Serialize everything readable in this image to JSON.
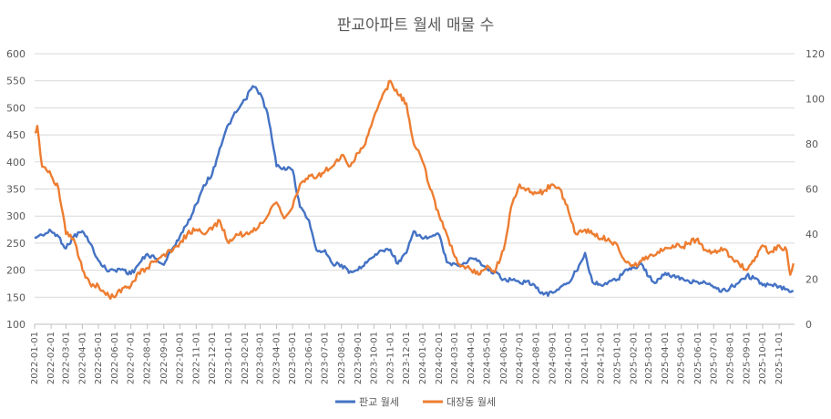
{
  "chart_data": {
    "type": "line",
    "title": "판교아파트 월세 매물 수",
    "x_tick_labels": [
      "2022-01-01",
      "2022-02-01",
      "2022-03-01",
      "2022-04-01",
      "2022-05-01",
      "2022-06-01",
      "2022-07-01",
      "2022-08-01",
      "2022-09-01",
      "2022-10-01",
      "2022-11-01",
      "2022-12-01",
      "2023-01-01",
      "2023-02-01",
      "2023-03-01",
      "2023-04-01",
      "2023-05-01",
      "2023-06-01",
      "2023-07-01",
      "2023-08-01",
      "2023-09-01",
      "2023-10-01",
      "2023-11-01",
      "2023-12-01",
      "2024-01-01",
      "2024-02-01",
      "2024-03-01",
      "2024-04-01",
      "2024-05-01",
      "2024-06-01",
      "2024-07-01",
      "2024-08-01",
      "2024-09-01",
      "2024-10-01",
      "2024-11-01",
      "2024-12-01",
      "2025-01-01",
      "2025-02-01",
      "2025-03-01",
      "2025-04-01",
      "2025-05-01",
      "2025-06-01",
      "2025-07-01",
      "2025-08-01",
      "2025-09-01",
      "2025-10-01",
      "2025-11-01"
    ],
    "y_left": {
      "min": 100,
      "max": 600,
      "ticks": [
        100,
        150,
        200,
        250,
        300,
        350,
        400,
        450,
        500,
        550,
        600
      ]
    },
    "y_right": {
      "min": 0,
      "max": 120,
      "ticks": [
        0,
        20,
        40,
        60,
        80,
        100,
        120
      ]
    },
    "grid": true,
    "legend_position": "bottom",
    "series": [
      {
        "name": "판교 월세",
        "axis": "left",
        "color": "#4472c4",
        "points": [
          [
            "2022-01-01",
            261
          ],
          [
            "2022-01-15",
            265
          ],
          [
            "2022-02-01",
            272
          ],
          [
            "2022-02-15",
            262
          ],
          [
            "2022-03-01",
            240
          ],
          [
            "2022-03-15",
            262
          ],
          [
            "2022-04-01",
            272
          ],
          [
            "2022-04-15",
            250
          ],
          [
            "2022-05-01",
            218
          ],
          [
            "2022-05-15",
            202
          ],
          [
            "2022-06-01",
            200
          ],
          [
            "2022-06-15",
            202
          ],
          [
            "2022-07-01",
            193
          ],
          [
            "2022-07-15",
            210
          ],
          [
            "2022-08-01",
            230
          ],
          [
            "2022-08-15",
            222
          ],
          [
            "2022-09-01",
            210
          ],
          [
            "2022-09-15",
            237
          ],
          [
            "2022-10-01",
            262
          ],
          [
            "2022-10-15",
            285
          ],
          [
            "2022-11-01",
            322
          ],
          [
            "2022-11-15",
            357
          ],
          [
            "2022-12-01",
            378
          ],
          [
            "2022-12-15",
            425
          ],
          [
            "2023-01-01",
            470
          ],
          [
            "2023-01-15",
            492
          ],
          [
            "2023-02-01",
            515
          ],
          [
            "2023-02-15",
            540
          ],
          [
            "2023-03-01",
            527
          ],
          [
            "2023-03-15",
            490
          ],
          [
            "2023-04-01",
            392
          ],
          [
            "2023-04-15",
            390
          ],
          [
            "2023-05-01",
            385
          ],
          [
            "2023-05-15",
            317
          ],
          [
            "2023-06-01",
            292
          ],
          [
            "2023-06-15",
            237
          ],
          [
            "2023-07-01",
            237
          ],
          [
            "2023-07-15",
            212
          ],
          [
            "2023-08-01",
            210
          ],
          [
            "2023-08-15",
            195
          ],
          [
            "2023-09-01",
            200
          ],
          [
            "2023-09-15",
            215
          ],
          [
            "2023-10-01",
            225
          ],
          [
            "2023-10-15",
            236
          ],
          [
            "2023-11-01",
            238
          ],
          [
            "2023-11-15",
            212
          ],
          [
            "2023-12-01",
            232
          ],
          [
            "2023-12-15",
            272
          ],
          [
            "2024-01-01",
            258
          ],
          [
            "2024-01-15",
            262
          ],
          [
            "2024-02-01",
            265
          ],
          [
            "2024-02-15",
            215
          ],
          [
            "2024-03-01",
            212
          ],
          [
            "2024-03-15",
            210
          ],
          [
            "2024-04-01",
            222
          ],
          [
            "2024-04-15",
            218
          ],
          [
            "2024-05-01",
            202
          ],
          [
            "2024-05-15",
            196
          ],
          [
            "2024-06-01",
            183
          ],
          [
            "2024-06-15",
            182
          ],
          [
            "2024-07-01",
            177
          ],
          [
            "2024-07-15",
            180
          ],
          [
            "2024-08-01",
            167
          ],
          [
            "2024-08-15",
            155
          ],
          [
            "2024-09-01",
            158
          ],
          [
            "2024-09-15",
            168
          ],
          [
            "2024-10-01",
            176
          ],
          [
            "2024-10-15",
            198
          ],
          [
            "2024-11-01",
            232
          ],
          [
            "2024-11-15",
            178
          ],
          [
            "2024-12-01",
            172
          ],
          [
            "2024-12-15",
            178
          ],
          [
            "2025-01-01",
            183
          ],
          [
            "2025-01-15",
            200
          ],
          [
            "2025-02-01",
            205
          ],
          [
            "2025-02-15",
            212
          ],
          [
            "2025-03-01",
            188
          ],
          [
            "2025-03-15",
            177
          ],
          [
            "2025-04-01",
            195
          ],
          [
            "2025-04-15",
            190
          ],
          [
            "2025-05-01",
            186
          ],
          [
            "2025-05-15",
            180
          ],
          [
            "2025-06-01",
            178
          ],
          [
            "2025-06-15",
            177
          ],
          [
            "2025-07-01",
            168
          ],
          [
            "2025-07-15",
            160
          ],
          [
            "2025-08-01",
            168
          ],
          [
            "2025-08-15",
            175
          ],
          [
            "2025-09-01",
            190
          ],
          [
            "2025-09-15",
            185
          ],
          [
            "2025-10-01",
            172
          ],
          [
            "2025-10-15",
            173
          ],
          [
            "2025-11-01",
            170
          ],
          [
            "2025-11-15",
            165
          ],
          [
            "2025-11-28",
            161
          ]
        ]
      },
      {
        "name": "대장동 월세",
        "axis": "right",
        "color": "#ed7d31",
        "points": [
          [
            "2022-01-01",
            85
          ],
          [
            "2022-01-06",
            88
          ],
          [
            "2022-01-15",
            70
          ],
          [
            "2022-02-01",
            66
          ],
          [
            "2022-02-15",
            60
          ],
          [
            "2022-03-01",
            40
          ],
          [
            "2022-03-15",
            38
          ],
          [
            "2022-04-01",
            24
          ],
          [
            "2022-04-15",
            18
          ],
          [
            "2022-05-01",
            17
          ],
          [
            "2022-05-15",
            13
          ],
          [
            "2022-06-01",
            12
          ],
          [
            "2022-06-15",
            16
          ],
          [
            "2022-07-01",
            17
          ],
          [
            "2022-07-15",
            23
          ],
          [
            "2022-08-01",
            25
          ],
          [
            "2022-08-15",
            28
          ],
          [
            "2022-09-01",
            31
          ],
          [
            "2022-09-15",
            32
          ],
          [
            "2022-10-01",
            36
          ],
          [
            "2022-10-15",
            40
          ],
          [
            "2022-11-01",
            42
          ],
          [
            "2022-11-15",
            40
          ],
          [
            "2022-12-01",
            42
          ],
          [
            "2022-12-15",
            46
          ],
          [
            "2023-01-01",
            36
          ],
          [
            "2023-01-15",
            40
          ],
          [
            "2023-02-01",
            40
          ],
          [
            "2023-02-15",
            41
          ],
          [
            "2023-03-01",
            45
          ],
          [
            "2023-03-15",
            48
          ],
          [
            "2023-04-01",
            54
          ],
          [
            "2023-04-15",
            47
          ],
          [
            "2023-05-01",
            52
          ],
          [
            "2023-05-15",
            62
          ],
          [
            "2023-06-01",
            66
          ],
          [
            "2023-06-15",
            65
          ],
          [
            "2023-07-01",
            68
          ],
          [
            "2023-07-15",
            70
          ],
          [
            "2023-08-01",
            75
          ],
          [
            "2023-08-15",
            70
          ],
          [
            "2023-09-01",
            76
          ],
          [
            "2023-09-15",
            80
          ],
          [
            "2023-10-01",
            92
          ],
          [
            "2023-10-15",
            100
          ],
          [
            "2023-11-01",
            108
          ],
          [
            "2023-11-15",
            102
          ],
          [
            "2023-12-01",
            98
          ],
          [
            "2023-12-15",
            80
          ],
          [
            "2024-01-01",
            72
          ],
          [
            "2024-01-15",
            60
          ],
          [
            "2024-02-01",
            48
          ],
          [
            "2024-02-15",
            40
          ],
          [
            "2024-03-01",
            30
          ],
          [
            "2024-03-15",
            26
          ],
          [
            "2024-04-01",
            24
          ],
          [
            "2024-04-15",
            22
          ],
          [
            "2024-05-01",
            26
          ],
          [
            "2024-05-15",
            23
          ],
          [
            "2024-06-01",
            33
          ],
          [
            "2024-06-15",
            52
          ],
          [
            "2024-07-01",
            62
          ],
          [
            "2024-07-15",
            60
          ],
          [
            "2024-08-01",
            58
          ],
          [
            "2024-08-15",
            59
          ],
          [
            "2024-09-01",
            62
          ],
          [
            "2024-09-15",
            60
          ],
          [
            "2024-10-01",
            50
          ],
          [
            "2024-10-15",
            40
          ],
          [
            "2024-11-01",
            42
          ],
          [
            "2024-11-15",
            40
          ],
          [
            "2024-12-01",
            38
          ],
          [
            "2024-12-15",
            38
          ],
          [
            "2025-01-01",
            35
          ],
          [
            "2025-01-15",
            28
          ],
          [
            "2025-02-01",
            26
          ],
          [
            "2025-02-15",
            28
          ],
          [
            "2025-03-01",
            30
          ],
          [
            "2025-03-15",
            31
          ],
          [
            "2025-04-01",
            34
          ],
          [
            "2025-04-15",
            35
          ],
          [
            "2025-05-01",
            34
          ],
          [
            "2025-05-15",
            36
          ],
          [
            "2025-06-01",
            38
          ],
          [
            "2025-06-15",
            33
          ],
          [
            "2025-07-01",
            32
          ],
          [
            "2025-07-15",
            34
          ],
          [
            "2025-08-01",
            30
          ],
          [
            "2025-08-15",
            28
          ],
          [
            "2025-09-01",
            24
          ],
          [
            "2025-09-15",
            28
          ],
          [
            "2025-10-01",
            35
          ],
          [
            "2025-10-15",
            32
          ],
          [
            "2025-11-01",
            35
          ],
          [
            "2025-11-15",
            33
          ],
          [
            "2025-11-22",
            22
          ],
          [
            "2025-11-28",
            27
          ]
        ]
      }
    ]
  }
}
